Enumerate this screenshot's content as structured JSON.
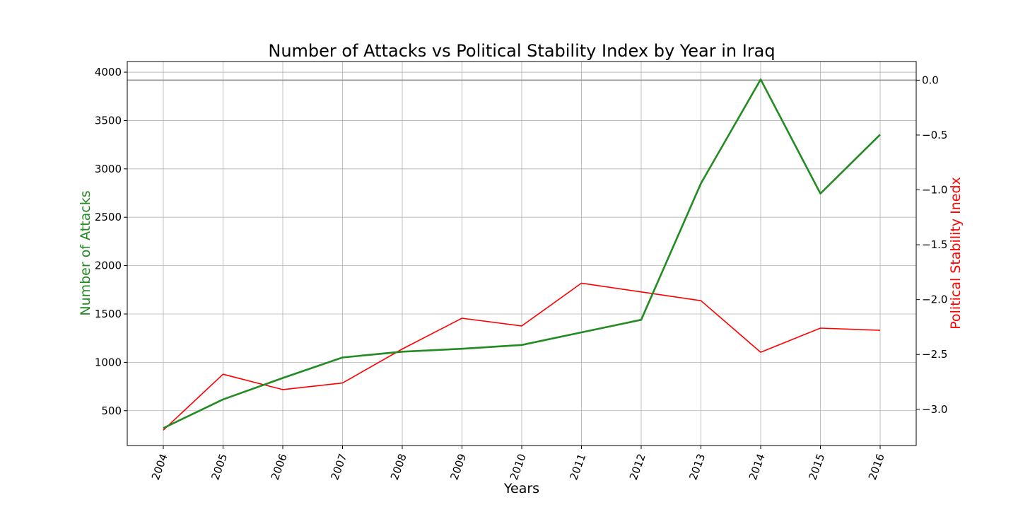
{
  "chart_data": {
    "type": "line",
    "title": "Number of Attacks vs Political Stability Index by Year in Iraq",
    "xlabel": "Years",
    "ylabel": "Number of Attacks",
    "y2label": "Political Stability Inedx",
    "categories": [
      "2004",
      "2005",
      "2006",
      "2007",
      "2008",
      "2009",
      "2010",
      "2011",
      "2012",
      "2013",
      "2014",
      "2015",
      "2016"
    ],
    "ylim": [
      140,
      4110
    ],
    "y2lim": [
      -3.33,
      0.17
    ],
    "yticks": [
      500,
      1000,
      1500,
      2000,
      2500,
      3000,
      3500,
      4000
    ],
    "y2ticks": [
      -3.0,
      -2.5,
      -2.0,
      -1.5,
      -1.0,
      -0.5,
      0.0
    ],
    "y2tick_labels": [
      "−3.0",
      "−2.5",
      "−2.0",
      "−1.5",
      "−1.0",
      "−0.5",
      "0.0"
    ],
    "grid": true,
    "reference_line": {
      "axis": "y2",
      "value": 0.0,
      "color": "#999999"
    },
    "series": [
      {
        "axis": "y",
        "color": "#228b22",
        "values": [
          320,
          617,
          838,
          1050,
          1110,
          1140,
          1180,
          1310,
          1440,
          2850,
          3925,
          2745,
          3355
        ]
      },
      {
        "axis": "y2",
        "color": "#ff0000",
        "values": [
          -3.19,
          -2.68,
          -2.82,
          -2.76,
          -2.45,
          -2.17,
          -2.24,
          -1.85,
          -1.93,
          -2.01,
          -2.48,
          -2.26,
          -2.28
        ]
      }
    ],
    "colors": {
      "y_axis_label": "#228b22",
      "y2_axis_label": "#ff0000",
      "grid": "#b0b0b0"
    }
  }
}
